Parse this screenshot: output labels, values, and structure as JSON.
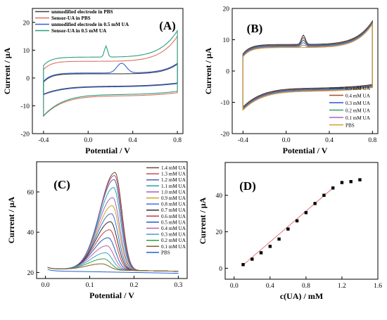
{
  "chart_data": [
    {
      "type": "line",
      "panel": "(A)",
      "xlabel": "Potential / V",
      "ylabel": "Current / μA",
      "xlim": [
        -0.5,
        0.85
      ],
      "ylim": [
        -20,
        25
      ],
      "xticks": [
        -0.4,
        0.0,
        0.4,
        0.8
      ],
      "yticks": [
        -20,
        -10,
        0,
        10,
        20
      ],
      "grid": false,
      "legend_position": "top-left",
      "series": [
        {
          "name": "unmodified electrode in PBS",
          "color": "#404040",
          "kind": "cv",
          "base_top": 1.5,
          "base_bot": -3.0,
          "amp": 3.5,
          "skew": 2.0,
          "peaks_top": [],
          "peaks_bot": []
        },
        {
          "name": "Sensor-UA in PBS",
          "color": "#e07060",
          "kind": "cv",
          "base_top": 6.0,
          "base_bot": -6.5,
          "amp": 9.0,
          "skew": 1.0,
          "peaks_top": [],
          "peaks_bot": []
        },
        {
          "name": "unmodified electrode in 0.5 mM UA",
          "color": "#3060d0",
          "kind": "cv",
          "base_top": 1.8,
          "base_bot": -3.2,
          "amp": 3.5,
          "skew": 2.0,
          "peaks_top": [
            [
              0.3,
              3.5,
              0.06
            ]
          ],
          "peaks_bot": []
        },
        {
          "name": "Sensor-UA in 0.5 mM UA",
          "color": "#2aa080",
          "kind": "cv",
          "base_top": 7.5,
          "base_bot": -6.0,
          "amp": 9.5,
          "skew": 1.0,
          "peaks_top": [
            [
              0.16,
              4.0,
              0.02
            ]
          ],
          "peaks_bot": []
        }
      ]
    },
    {
      "type": "line",
      "panel": "(B)",
      "xlabel": "Potential / V",
      "ylabel": "Current / μA",
      "xlim": [
        -0.5,
        0.85
      ],
      "ylim": [
        -20,
        20
      ],
      "xticks": [
        -0.4,
        0.0,
        0.4,
        0.8
      ],
      "yticks": [
        -20,
        -10,
        0,
        10,
        20
      ],
      "grid": false,
      "legend_position": "bottom-right",
      "series": [
        {
          "name": "0.5 mM UA",
          "color": "#303030",
          "base_top": 8.5,
          "base_bot": -5.5,
          "peak": 3.0
        },
        {
          "name": "0.4 mM UA",
          "color": "#a0522d",
          "base_top": 8.3,
          "base_bot": -5.7,
          "peak": 2.4
        },
        {
          "name": "0.3 mM UA",
          "color": "#3050d0",
          "base_top": 8.1,
          "base_bot": -5.9,
          "peak": 1.8
        },
        {
          "name": "0.2 mM UA",
          "color": "#30a070",
          "base_top": 7.9,
          "base_bot": -6.1,
          "peak": 1.2
        },
        {
          "name": "0.1 mM UA",
          "color": "#b060c0",
          "base_top": 7.7,
          "base_bot": -6.3,
          "peak": 0.6
        },
        {
          "name": "PBS",
          "color": "#d4a020",
          "base_top": 7.5,
          "base_bot": -6.5,
          "peak": 0.0
        }
      ]
    },
    {
      "type": "line",
      "panel": "(C)",
      "xlabel": "Potential / V",
      "ylabel": "Current / μA",
      "xlim": [
        -0.02,
        0.32
      ],
      "ylim": [
        17,
        75
      ],
      "xticks": [
        0.0,
        0.1,
        0.2,
        0.3
      ],
      "yticks": [
        20,
        40,
        60
      ],
      "grid": false,
      "legend_position": "top-right",
      "series": [
        {
          "name": "1.4 mM UA",
          "color": "#704a3c",
          "peak": 69.5,
          "center": 0.157
        },
        {
          "name": "1.3 mM UA",
          "color": "#c05060",
          "peak": 68.0,
          "center": 0.156
        },
        {
          "name": "1.2 mM UA",
          "color": "#5060c0",
          "peak": 66.0,
          "center": 0.155
        },
        {
          "name": "1.1 mM UA",
          "color": "#30a0a0",
          "peak": 62.0,
          "center": 0.154
        },
        {
          "name": "1.0 mM UA",
          "color": "#a060c0",
          "peak": 57.0,
          "center": 0.152
        },
        {
          "name": "0.9 mM UA",
          "color": "#d4a020",
          "peak": 53.0,
          "center": 0.151
        },
        {
          "name": "0.8 mM UA",
          "color": "#4070e0",
          "peak": 49.0,
          "center": 0.149
        },
        {
          "name": "0.7 mM UA",
          "color": "#303030",
          "peak": 45.0,
          "center": 0.147
        },
        {
          "name": "0.6 mM UA",
          "color": "#c04040",
          "peak": 41.0,
          "center": 0.145
        },
        {
          "name": "0.5 mM UA",
          "color": "#2060c0",
          "peak": 37.0,
          "center": 0.142
        },
        {
          "name": "0.4 mM UA",
          "color": "#c060a0",
          "peak": 33.0,
          "center": 0.139
        },
        {
          "name": "0.3 mM UA",
          "color": "#40a0d0",
          "peak": 29.5,
          "center": 0.136
        },
        {
          "name": "0.2 mM UA",
          "color": "#30a040",
          "peak": 26.5,
          "center": 0.132
        },
        {
          "name": "0.1 mM UA",
          "color": "#8b5a2b",
          "peak": 24.0,
          "center": 0.128
        },
        {
          "name": "PBS",
          "color": "#2060d0",
          "peak": 21.0,
          "center": 0.13
        }
      ]
    },
    {
      "type": "scatter",
      "panel": "(D)",
      "xlabel": "c(UA) / mM",
      "ylabel": "Current / μA",
      "xlim": [
        -0.1,
        1.6
      ],
      "ylim": [
        -6,
        58
      ],
      "xticks": [
        0.0,
        0.4,
        0.8,
        1.2,
        1.6
      ],
      "yticks": [
        0,
        20,
        40
      ],
      "grid": false,
      "fit_line": {
        "x": [
          0.1,
          1.1
        ],
        "y": [
          1.8,
          44.0
        ],
        "color": "#e07a7a"
      },
      "series": [
        {
          "x": [
            0.1,
            0.2,
            0.3,
            0.4,
            0.5,
            0.6,
            0.7,
            0.8,
            0.9,
            1.0,
            1.1,
            1.2,
            1.3,
            1.4
          ],
          "y": [
            2.0,
            5.0,
            8.5,
            12.0,
            16.0,
            21.5,
            26.0,
            30.5,
            35.5,
            40.0,
            44.0,
            47.0,
            47.5,
            48.5
          ]
        }
      ]
    }
  ]
}
